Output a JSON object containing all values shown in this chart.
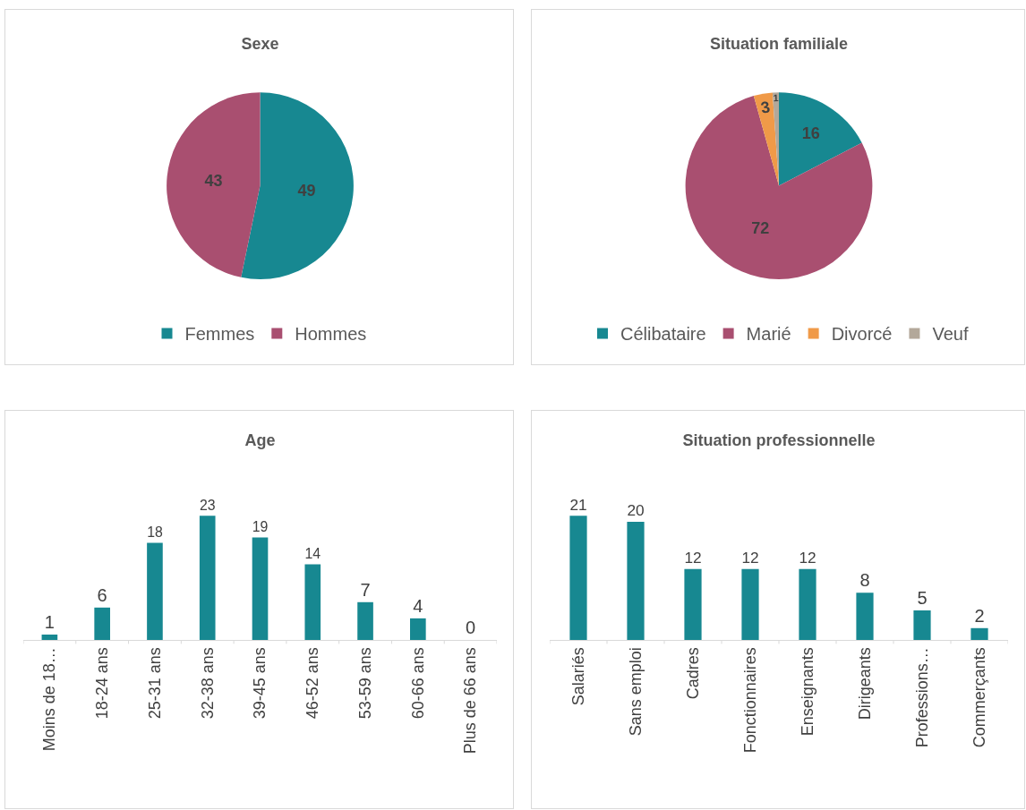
{
  "chart_data": [
    {
      "type": "pie",
      "title": "Sexe",
      "categories": [
        "Femmes",
        "Hommes"
      ],
      "values": [
        49,
        43
      ],
      "colors": [
        "#178891",
        "#a94f70"
      ],
      "legend": "bottom",
      "data_labels": true
    },
    {
      "type": "pie",
      "title": "Situation familiale",
      "categories": [
        "Célibataire",
        "Marié",
        "Divorcé",
        "Veuf"
      ],
      "values": [
        16,
        72,
        3,
        1
      ],
      "colors": [
        "#178891",
        "#a94f70",
        "#f09a48",
        "#b3a89a"
      ],
      "legend": "bottom",
      "data_labels": true
    },
    {
      "type": "bar",
      "title": "Age",
      "categories": [
        "Moins de 18…",
        "18-24 ans",
        "25-31 ans",
        "32-38 ans",
        "39-45 ans",
        "46-52 ans",
        "53-59 ans",
        "60-66 ans",
        "Plus de 66 ans"
      ],
      "values": [
        1,
        6,
        18,
        23,
        19,
        14,
        7,
        4,
        0
      ],
      "color": "#178891",
      "data_labels": true
    },
    {
      "type": "bar",
      "title": "Situation professionnelle",
      "categories": [
        "Salariés",
        "Sans emploi",
        "Cadres",
        "Fonctionnaires",
        "Enseignants",
        "Dirigeants",
        "Professions…",
        "Commerçants"
      ],
      "values": [
        21,
        20,
        12,
        12,
        12,
        8,
        5,
        2
      ],
      "color": "#178891",
      "data_labels": true
    }
  ]
}
